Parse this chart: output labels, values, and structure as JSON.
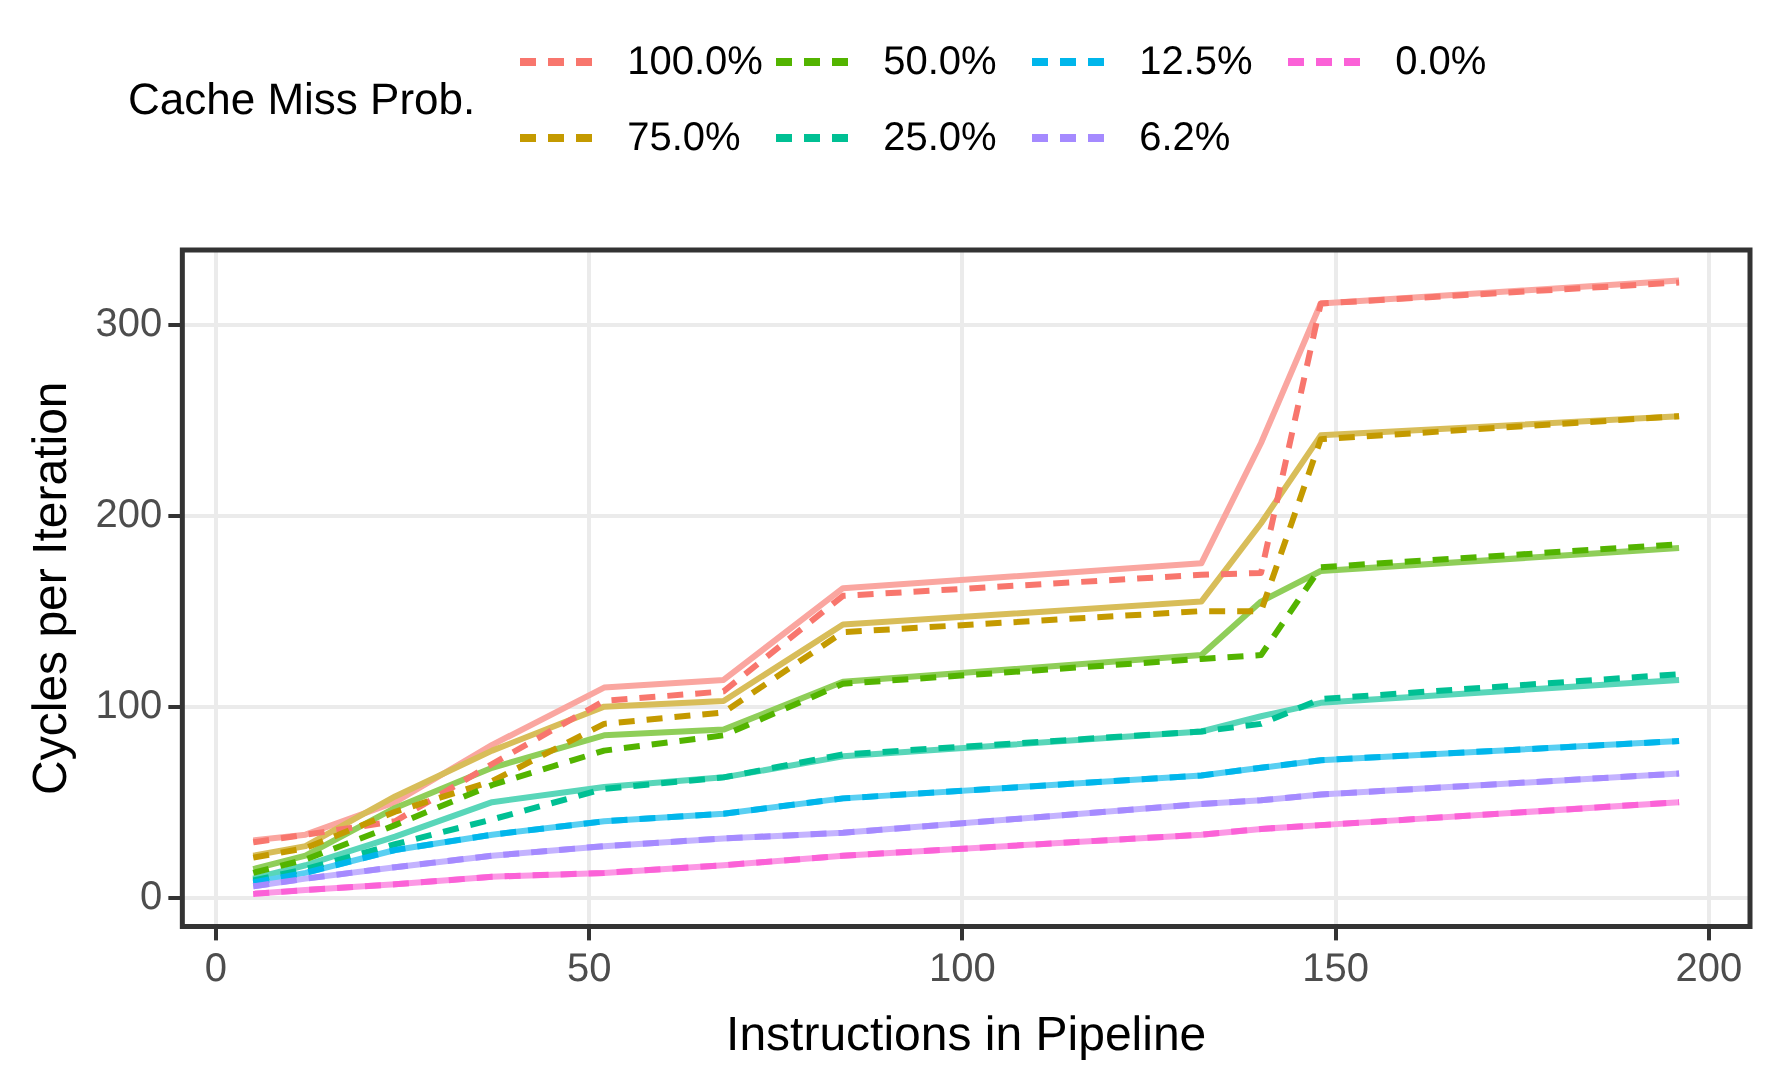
{
  "chart_data": {
    "type": "line",
    "xlabel": "Instructions in Pipeline",
    "ylabel": "Cycles per Iteration",
    "legend_title": "Cache Miss Prob.",
    "legend": "top",
    "grid": true,
    "marker": "none",
    "x": [
      5,
      12,
      24,
      37,
      52,
      68,
      84,
      132,
      140,
      148,
      196
    ],
    "xlim": [
      -4.5,
      205.5
    ],
    "xticks": [
      0,
      50,
      100,
      150,
      200
    ],
    "ylim": [
      -15,
      339
    ],
    "yticks": [
      0,
      100,
      200,
      300
    ],
    "series": [
      {
        "color": "#faa6a0",
        "line_style": "solid",
        "values": [
          30,
          33,
          50,
          80,
          110,
          114,
          162,
          175,
          238,
          311,
          323
        ]
      },
      {
        "color": "#d8bd59",
        "line_style": "solid",
        "values": [
          22,
          27,
          53,
          77,
          100,
          103,
          143,
          155,
          196,
          242,
          252
        ]
      },
      {
        "color": "#8fce59",
        "line_style": "solid",
        "values": [
          15,
          22,
          47,
          68,
          85,
          88,
          113,
          127,
          155,
          171,
          183
        ]
      },
      {
        "color": "#59d6b9",
        "line_style": "solid",
        "values": [
          10,
          17,
          32,
          50,
          58,
          63,
          74,
          87,
          95,
          102,
          114
        ]
      },
      {
        "color": "#59cff2",
        "line_style": "solid",
        "values": [
          8,
          13,
          25,
          33,
          40,
          44,
          52,
          64,
          68,
          72,
          82
        ]
      },
      {
        "color": "#c4b3ff",
        "line_style": "solid",
        "values": [
          6,
          10,
          16,
          22,
          27,
          31,
          34,
          49,
          51,
          54,
          65
        ]
      },
      {
        "color": "#fc98e5",
        "line_style": "solid",
        "values": [
          2,
          4,
          7,
          11,
          13,
          17,
          22,
          33,
          36,
          38,
          50
        ]
      },
      {
        "name": "100.0%",
        "color": "#f8766d",
        "line_style": "dashed",
        "values": [
          29,
          33,
          40,
          70,
          103,
          108,
          158,
          169,
          170,
          311,
          322
        ]
      },
      {
        "name": "75.0%",
        "color": "#c49a00",
        "line_style": "dashed",
        "values": [
          21,
          26,
          45,
          61,
          91,
          97,
          139,
          150,
          150,
          240,
          252
        ]
      },
      {
        "name": "50.0%",
        "color": "#53b400",
        "line_style": "dashed",
        "values": [
          13,
          20,
          38,
          59,
          77,
          85,
          112,
          125,
          127,
          173,
          185
        ]
      },
      {
        "name": "25.0%",
        "color": "#00c094",
        "line_style": "dashed",
        "values": [
          9,
          15,
          28,
          41,
          57,
          63,
          75,
          87,
          91,
          104,
          117
        ]
      },
      {
        "name": "12.5%",
        "color": "#00b6eb",
        "line_style": "dashed",
        "values": [
          8,
          13,
          25,
          33,
          40,
          44,
          52,
          64,
          68,
          72,
          82
        ]
      },
      {
        "name": "6.2%",
        "color": "#a58aff",
        "line_style": "dashed",
        "values": [
          6,
          10,
          16,
          22,
          27,
          31,
          34,
          49,
          51,
          54,
          65
        ]
      },
      {
        "name": "0.0%",
        "color": "#fb61d7",
        "line_style": "dashed",
        "values": [
          2,
          4,
          7,
          11,
          13,
          17,
          22,
          33,
          36,
          38,
          50
        ]
      }
    ]
  }
}
